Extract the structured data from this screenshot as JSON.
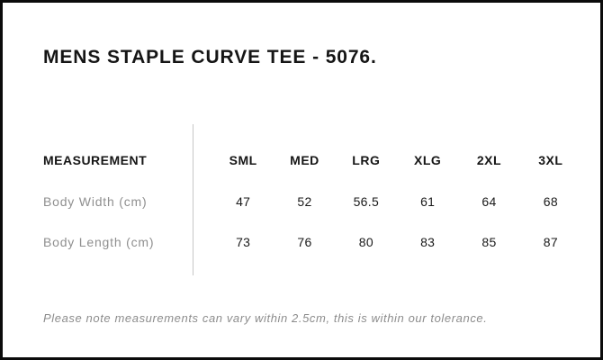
{
  "colors": {
    "background": "#ffffff",
    "border": "#0b0b0b",
    "text": "#161616",
    "muted_text": "#8f8f8f",
    "divider": "#c7c7c7"
  },
  "chart_data": {
    "type": "table",
    "title": "MENS STAPLE CURVE TEE - 5076.",
    "columns": [
      "MEASUREMENT",
      "SML",
      "MED",
      "LRG",
      "XLG",
      "2XL",
      "3XL"
    ],
    "rows": [
      [
        "Body Width (cm)",
        47,
        52,
        56.5,
        61,
        64,
        68
      ],
      [
        "Body Length (cm)",
        73,
        76,
        80,
        83,
        85,
        87
      ]
    ],
    "footnote": "Please note measurements can vary within 2.5cm, this is within our tolerance."
  }
}
